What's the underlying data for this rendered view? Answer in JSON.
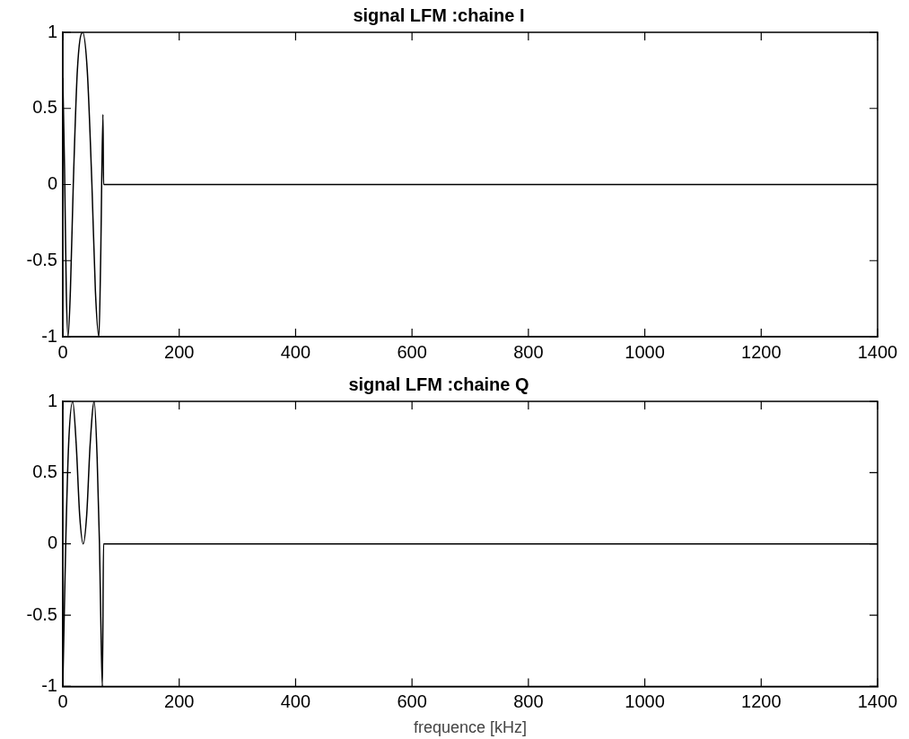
{
  "chart_data": [
    {
      "type": "line",
      "title": "signal LFM :chaine I",
      "x": [
        0,
        3,
        6,
        9,
        13,
        18,
        25,
        34,
        42,
        50,
        56,
        62,
        65,
        69,
        70,
        1400
      ],
      "series": [
        {
          "color": "#000000",
          "values": [
            0.7,
            0.1,
            -0.7,
            -1,
            -0.7,
            0,
            0.75,
            1,
            0.75,
            0,
            -0.7,
            -1,
            -0.5,
            0.46,
            0,
            0
          ]
        }
      ],
      "xlim": [
        0,
        1400
      ],
      "xticks": [
        0,
        200,
        400,
        600,
        800,
        1000,
        1200,
        1400
      ],
      "ylim": [
        -1,
        1
      ],
      "yticks": [
        -1,
        -0.5,
        0,
        0.5,
        1
      ],
      "grid": false,
      "legend": false,
      "marker": "none",
      "line_style": "solid"
    },
    {
      "type": "line",
      "title": "signal LFM :chaine Q",
      "xlabel": "frequence [kHz]",
      "x": [
        0,
        5,
        10,
        17,
        23,
        29,
        35,
        41,
        47,
        54,
        59,
        63,
        66,
        68,
        70,
        1400
      ],
      "series": [
        {
          "color": "#000000",
          "values": [
            -1,
            0,
            0.7,
            1,
            0.7,
            0.2,
            0,
            0.2,
            0.7,
            1,
            0.6,
            0,
            -0.7,
            -1,
            0,
            0
          ]
        }
      ],
      "xlim": [
        0,
        1400
      ],
      "xticks": [
        0,
        200,
        400,
        600,
        800,
        1000,
        1200,
        1400
      ],
      "ylim": [
        -1,
        1
      ],
      "yticks": [
        -1,
        -0.5,
        0,
        0.5,
        1
      ],
      "grid": false,
      "legend": false,
      "marker": "none",
      "line_style": "solid"
    }
  ]
}
